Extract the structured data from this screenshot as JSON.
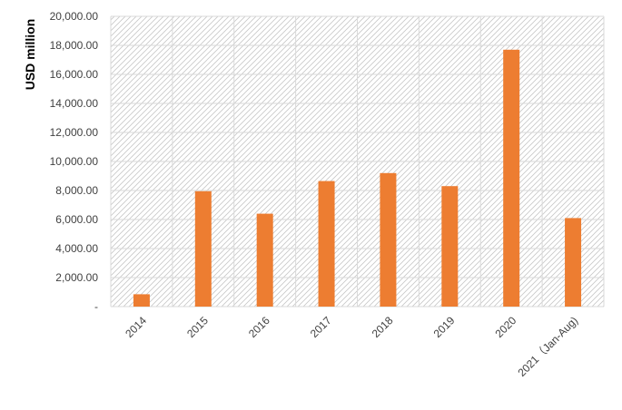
{
  "chart_data": {
    "type": "bar",
    "title": "",
    "xlabel": "",
    "ylabel": "USD million",
    "ylim": [
      0,
      20000
    ],
    "yticks": [
      "-",
      "2,000.00",
      "4,000.00",
      "6,000.00",
      "8,000.00",
      "10,000.00",
      "12,000.00",
      "14,000.00",
      "16,000.00",
      "18,000.00",
      "20,000.00"
    ],
    "categories": [
      "2014",
      "2015",
      "2016",
      "2017",
      "2018",
      "2019",
      "2020",
      "2021（Jan-Aug)"
    ],
    "values": [
      850,
      7950,
      6400,
      8650,
      9200,
      8300,
      17700,
      6100
    ],
    "grid": true,
    "legend": "none",
    "colors": {
      "bar": "#ED7D31",
      "grid": "#d9d9d9",
      "hatch": "#c8c8c8",
      "text": "#404040"
    }
  }
}
